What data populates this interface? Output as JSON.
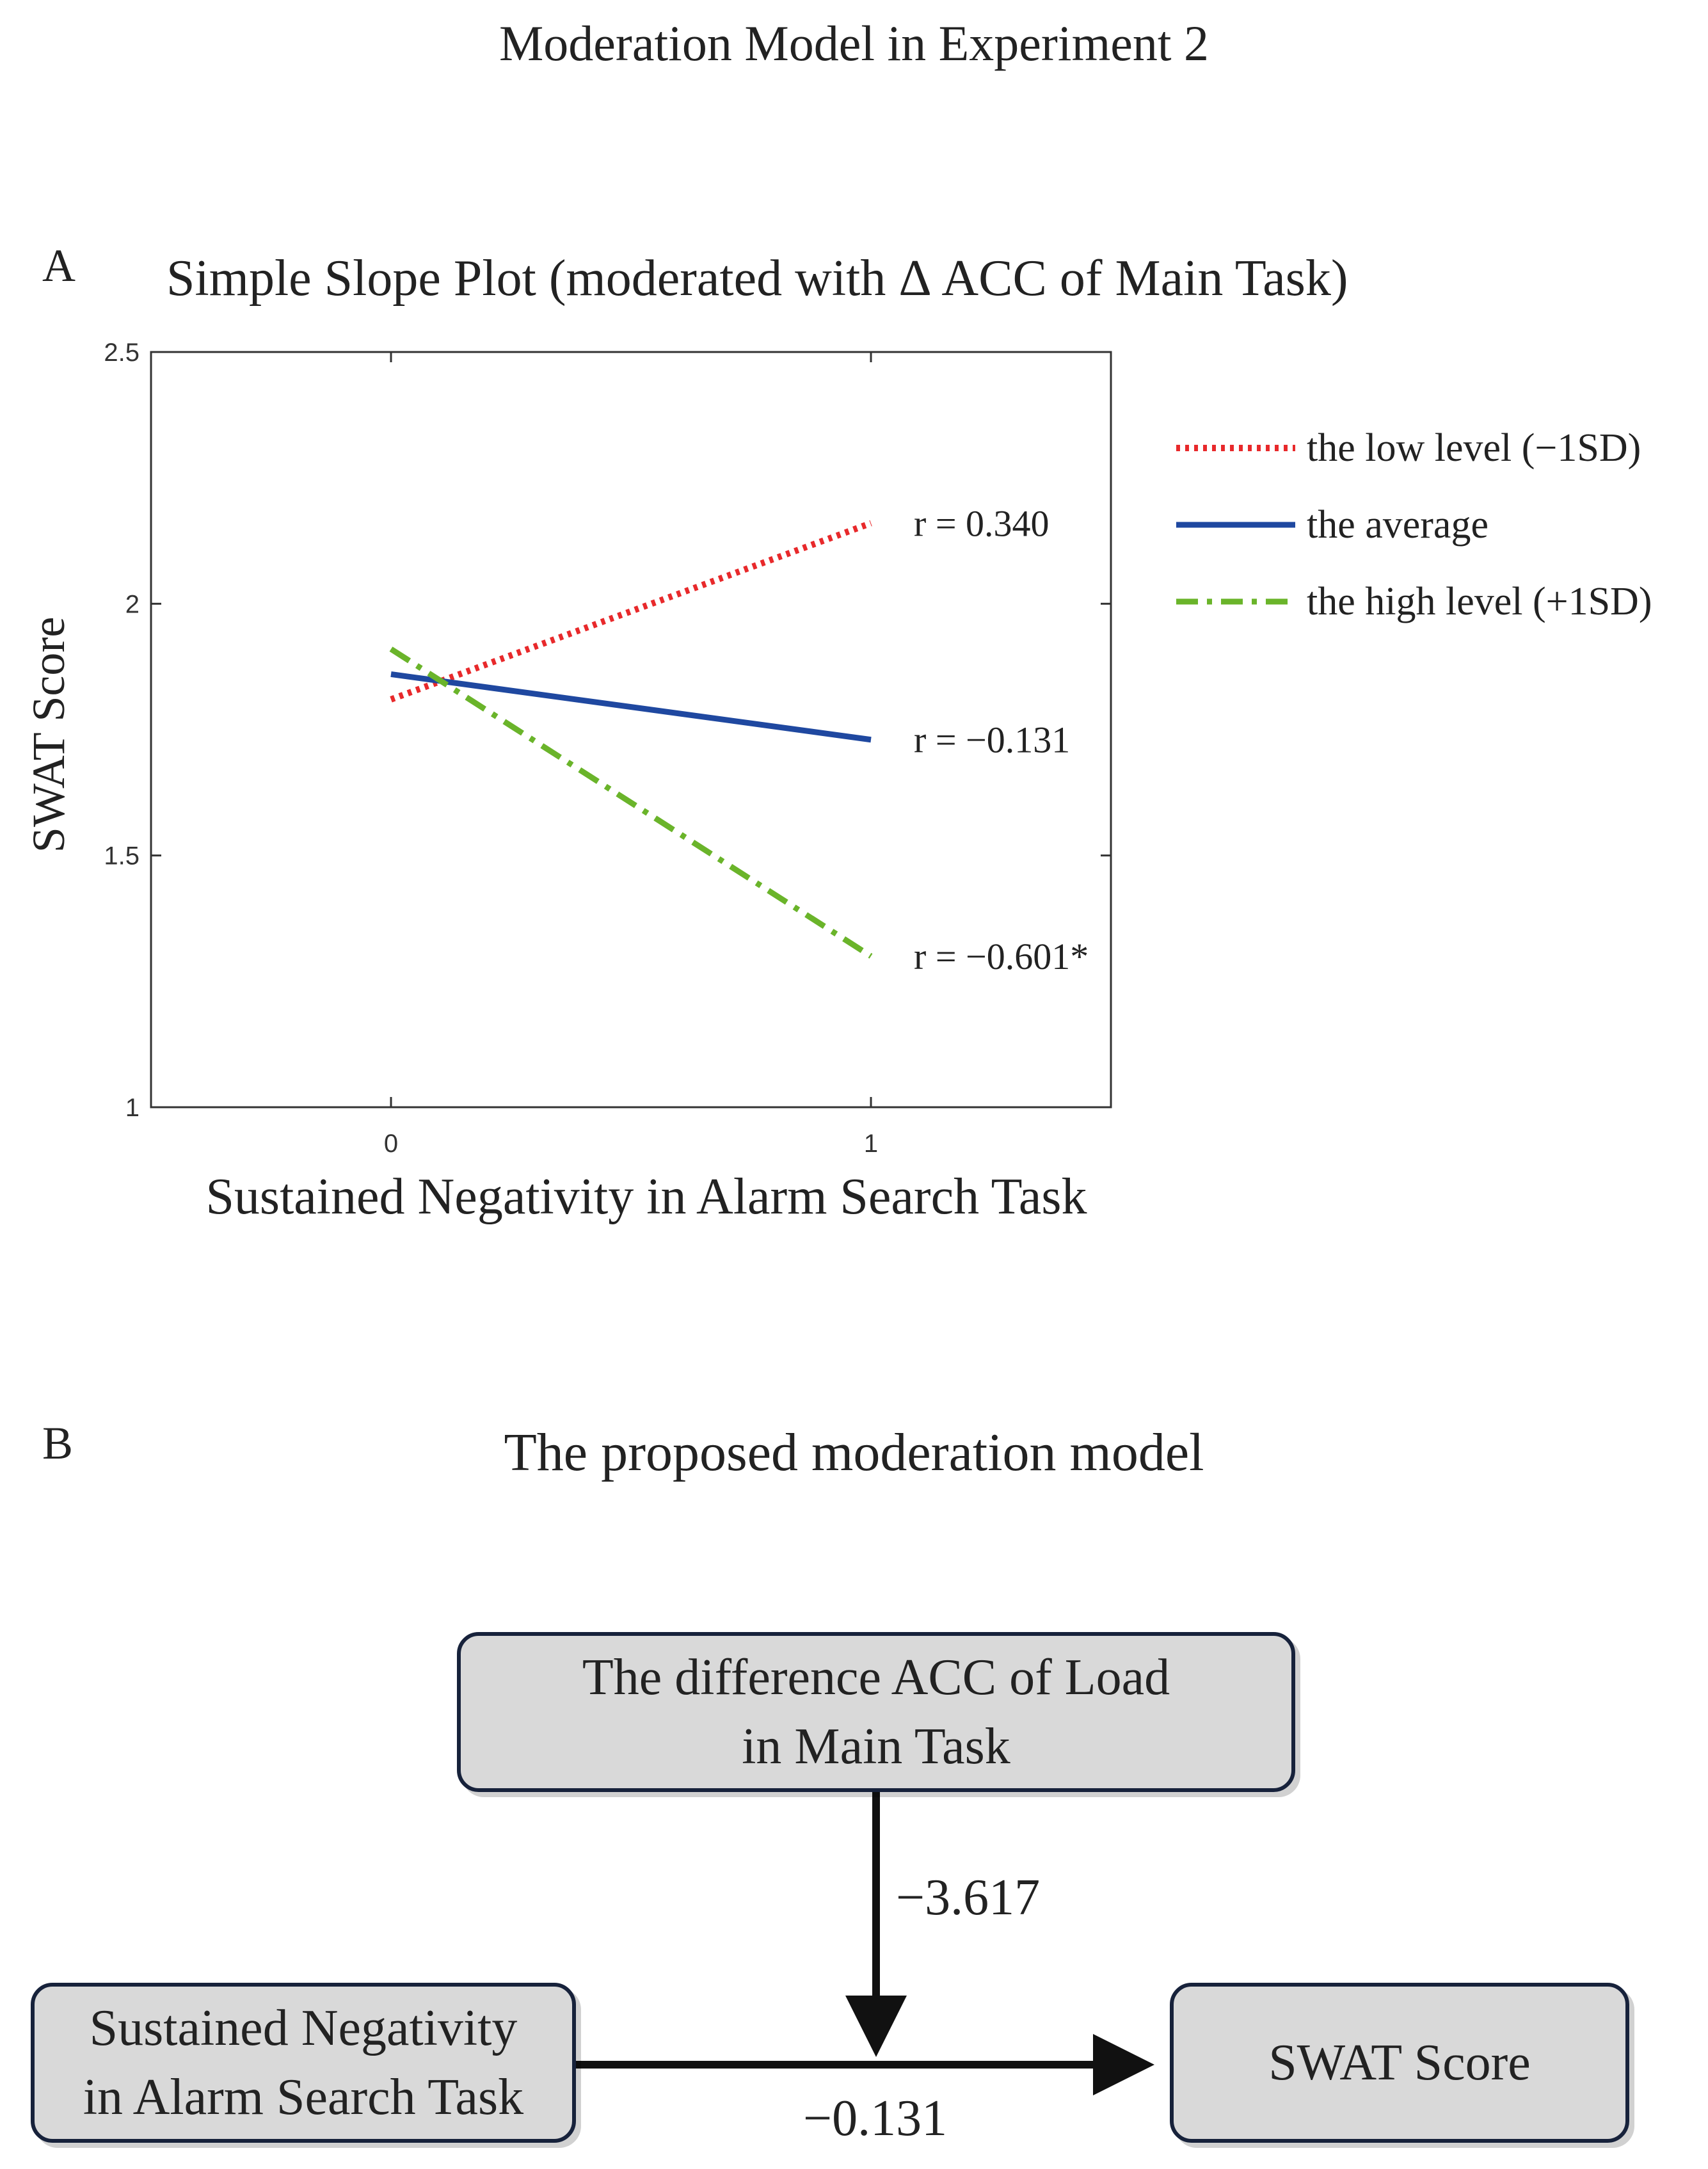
{
  "figure": {
    "title": "Moderation Model in Experiment 2",
    "panel_a_letter": "A",
    "panel_b_letter": "B"
  },
  "chart_data": {
    "type": "line",
    "title": "Simple Slope Plot (moderated with  Δ ACC of Main Task)",
    "xlabel": "Sustained Negativity in Alarm Search Task",
    "ylabel": "SWAT Score",
    "xlim": [
      -0.5,
      1.5
    ],
    "ylim": [
      1,
      2.5
    ],
    "x_ticks": [
      0,
      1
    ],
    "x_tick_labels": [
      "0",
      "1"
    ],
    "y_ticks": [
      1,
      1.5,
      2,
      2.5
    ],
    "y_tick_labels": [
      "1",
      "1.5",
      "2",
      "2.5"
    ],
    "grid": false,
    "legend_position": "outside-right",
    "series": [
      {
        "name": "the low level (−1SD)",
        "x": [
          0,
          1
        ],
        "values": [
          1.81,
          2.16
        ],
        "color": "#e8292b",
        "dash": "dotted",
        "annotation": "r = 0.340"
      },
      {
        "name": "the average",
        "x": [
          0,
          1
        ],
        "values": [
          1.86,
          1.73
        ],
        "color": "#1f48a0",
        "dash": "solid",
        "annotation": "r = −0.131"
      },
      {
        "name": "the high level (+1SD)",
        "x": [
          0,
          1
        ],
        "values": [
          1.91,
          1.3
        ],
        "color": "#6ab42a",
        "dash": "dashdot",
        "annotation": "r = −0.601*"
      }
    ]
  },
  "model": {
    "title": "The proposed moderation model",
    "moderator_line1": "The difference ACC of Load",
    "moderator_line2": "in Main Task",
    "predictor_line1": "Sustained Negativity",
    "predictor_line2": "in Alarm Search Task",
    "outcome": "SWAT Score",
    "moderator_coef": "−3.617",
    "path_coef": "−0.131"
  }
}
